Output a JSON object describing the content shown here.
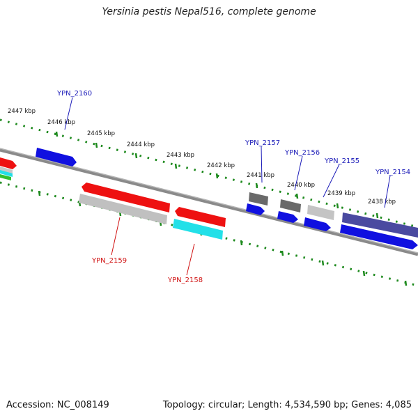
{
  "title": "Yersinia pestis Nepal516, complete genome",
  "footer": {
    "accession": "Accession: NC_008149",
    "summary": "Topology: circular; Length: 4,534,590 bp; Genes: 4,085"
  },
  "kbp_labels": [
    "2447 kbp",
    "2446 kbp",
    "2445 kbp",
    "2444 kbp",
    "2443 kbp",
    "2442 kbp",
    "2441 kbp",
    "2440 kbp",
    "2439 kbp",
    "2438 kbp"
  ],
  "gene_labels": {
    "YPN_2160": "YPN_2160",
    "YPN_2159": "YPN_2159",
    "YPN_2158": "YPN_2158",
    "YPN_2157": "YPN_2157",
    "YPN_2156": "YPN_2156",
    "YPN_2155": "YPN_2155",
    "YPN_2154": "YPN_2154"
  },
  "colors": {
    "forward_gene": "#1010e0",
    "reverse_gene": "#ee1111",
    "label_forward": "#1a1ab8",
    "label_reverse": "#d01010",
    "tick": "#1e8a1e",
    "backbone": "#777777",
    "cyan": "#22e0e8",
    "light_gray": "#c4c4c4",
    "dark_gray": "#6a6a6a",
    "purple": "#4a4aa0",
    "green": "#30c030"
  }
}
